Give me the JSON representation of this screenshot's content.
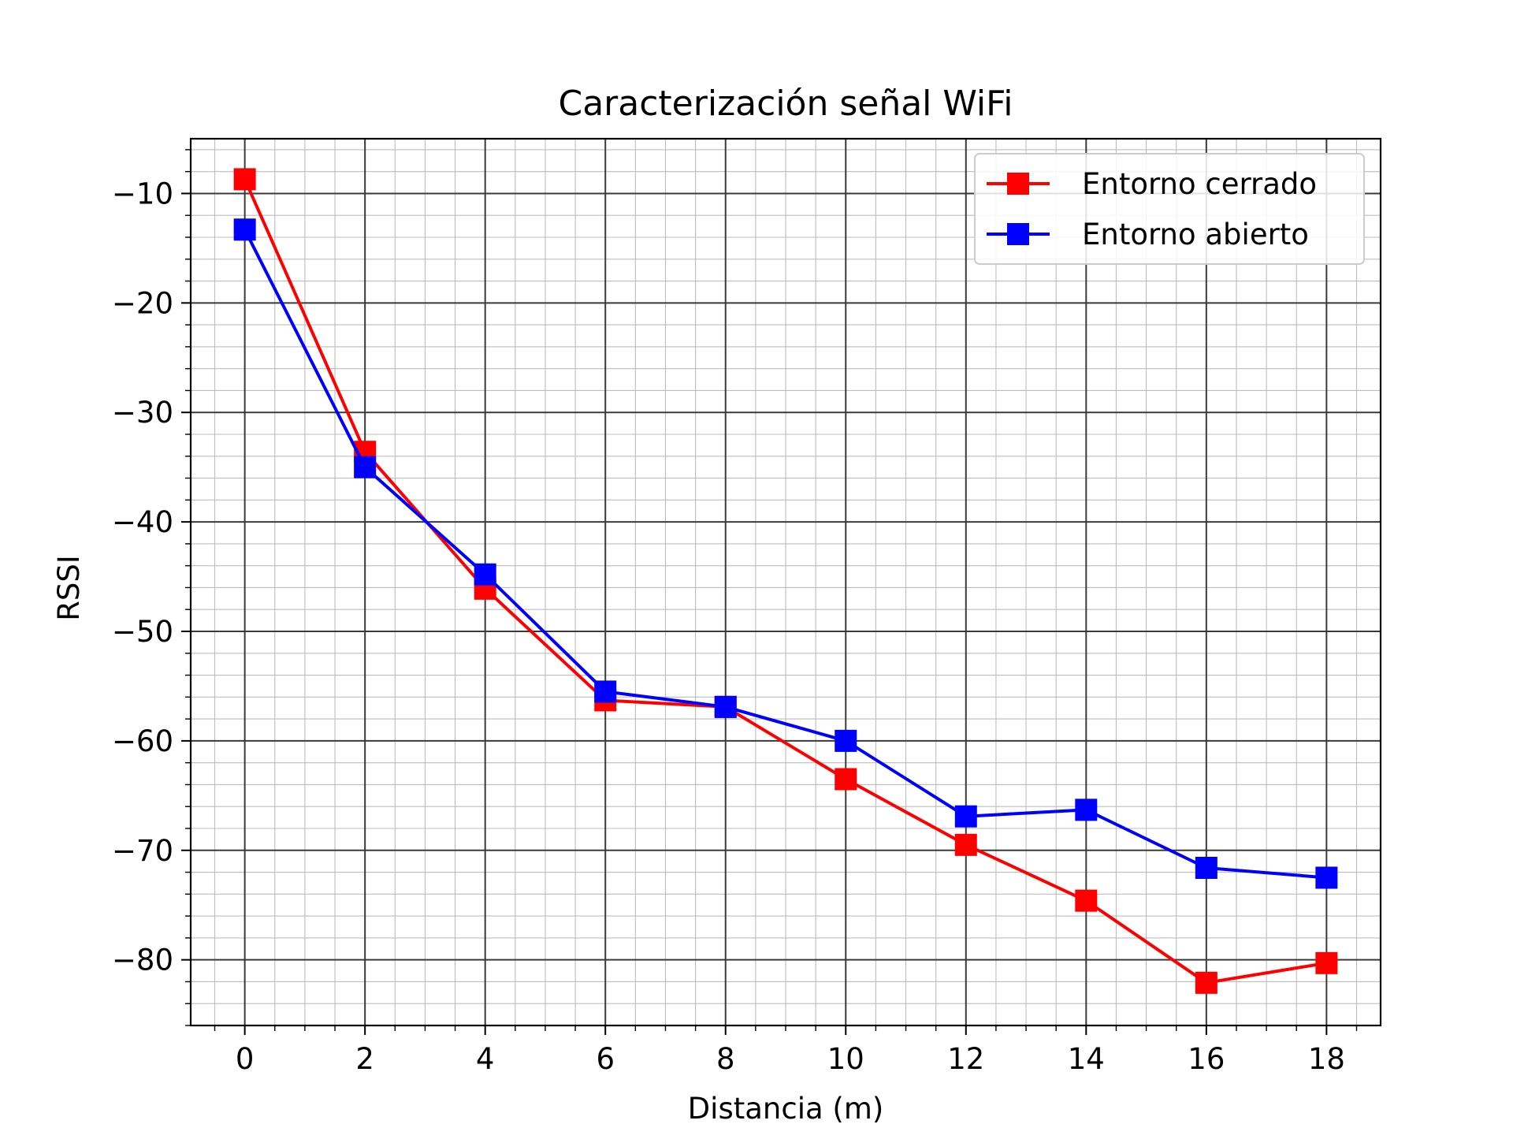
{
  "chart_data": {
    "type": "line",
    "title": "Caracterización señal WiFi",
    "xlabel": "Distancia (m)",
    "ylabel": "RSSI",
    "x": [
      0,
      2,
      4,
      6,
      8,
      10,
      12,
      14,
      16,
      18
    ],
    "xlim": [
      -0.9,
      18.9
    ],
    "ylim": [
      -86,
      -5
    ],
    "xticks": [
      0,
      2,
      4,
      6,
      8,
      10,
      12,
      14,
      16,
      18
    ],
    "xtick_labels": [
      "0",
      "2",
      "4",
      "6",
      "8",
      "10",
      "12",
      "14",
      "16",
      "18"
    ],
    "yticks": [
      -80,
      -70,
      -60,
      -50,
      -40,
      -30,
      -20,
      -10
    ],
    "ytick_labels": [
      "−80",
      "−70",
      "−60",
      "−50",
      "−40",
      "−30",
      "−20",
      "−10"
    ],
    "grid": true,
    "minor_grid": true,
    "legend_position": "top-right",
    "series": [
      {
        "name": "Entorno cerrado",
        "color": "#ff0000",
        "marker": "square",
        "values": [
          -8.7,
          -33.6,
          -46.1,
          -56.3,
          -56.9,
          -63.5,
          -69.5,
          -74.6,
          -82.1,
          -80.3
        ]
      },
      {
        "name": "Entorno abierto",
        "color": "#0000ff",
        "marker": "square",
        "values": [
          -13.3,
          -35.0,
          -44.8,
          -55.5,
          -56.9,
          -60.0,
          -66.9,
          -66.3,
          -71.6,
          -72.5
        ]
      }
    ]
  }
}
